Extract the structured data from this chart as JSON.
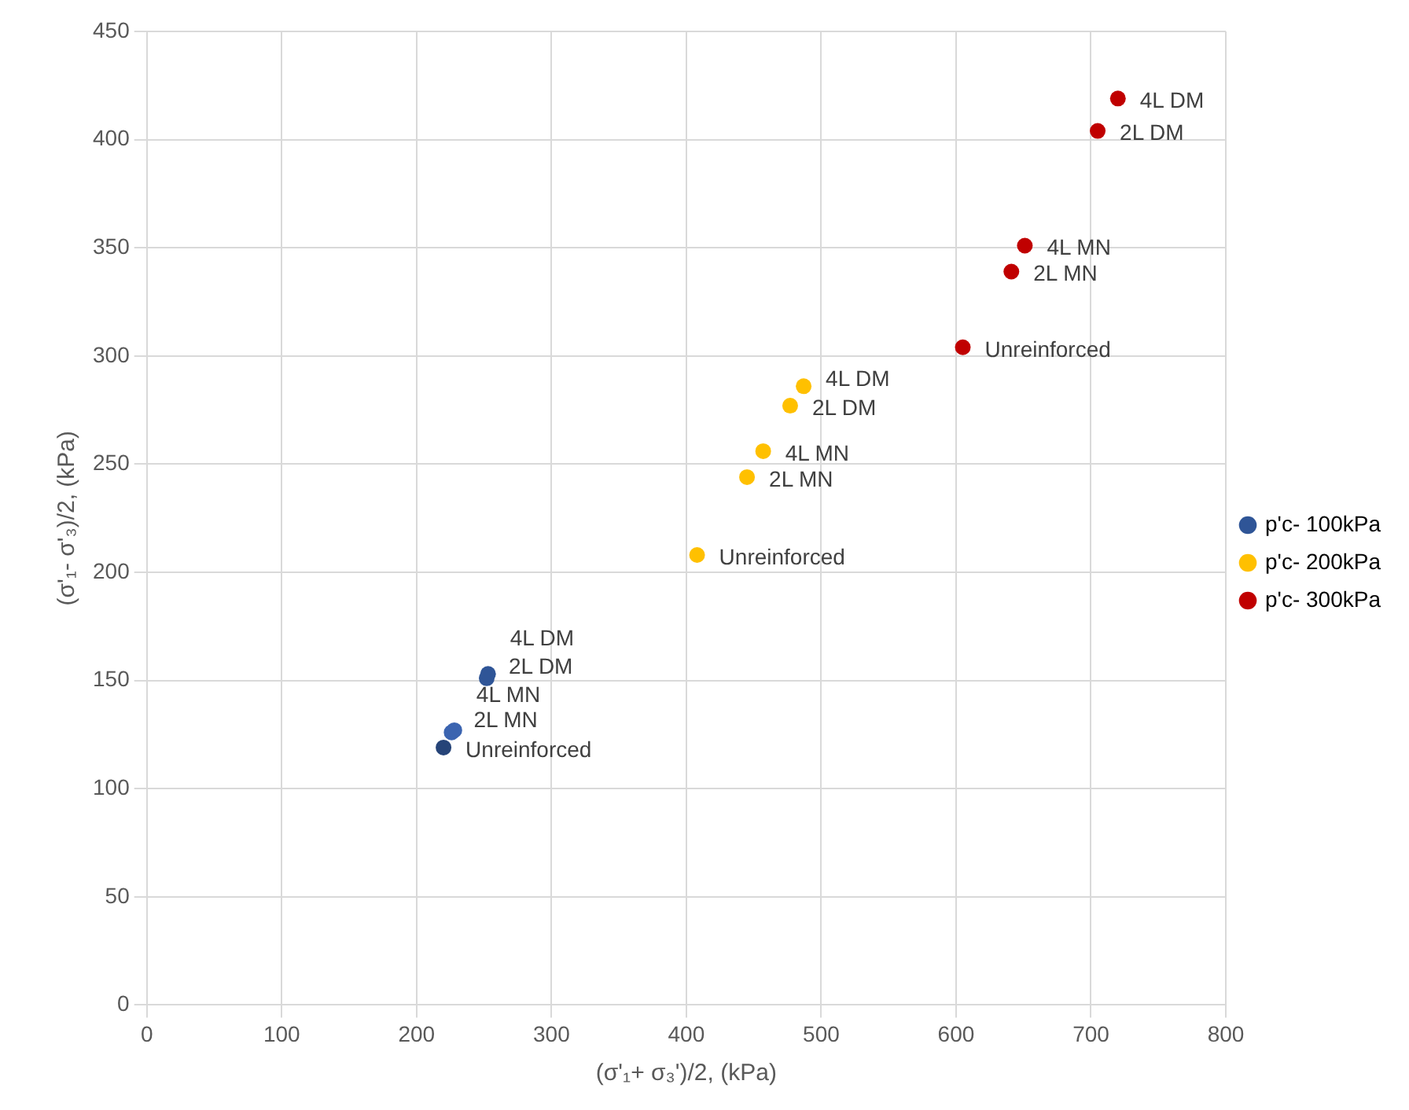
{
  "chart_data": {
    "type": "scatter",
    "xlabel": "(σ'₁+ σ₃')/2, (kPa)",
    "ylabel": "(σ'₁- σ'₃)/2, (kPa)",
    "xlim": [
      0,
      800
    ],
    "xticks": [
      0,
      100,
      200,
      300,
      400,
      500,
      600,
      700,
      800
    ],
    "ylim": [
      0,
      450
    ],
    "yticks": [
      0,
      50,
      100,
      150,
      200,
      250,
      300,
      350,
      400,
      450
    ],
    "grid": true,
    "legend": "right",
    "marker": "circle",
    "series": [
      {
        "name": "p'c- 100kPa",
        "color": "#2f5597",
        "colors": [
          "#264478",
          "#3b64b0",
          "#3b64b0",
          "#2f5597",
          "#2f5597"
        ],
        "x": [
          220,
          226,
          228,
          252,
          253
        ],
        "values": [
          119,
          126,
          127,
          151,
          153
        ]
      },
      {
        "name": "p'c- 200kPa",
        "color": "#ffc000",
        "x": [
          408,
          445,
          457,
          477,
          487
        ],
        "values": [
          208,
          244,
          256,
          277,
          286
        ]
      },
      {
        "name": "p'c- 300kPa",
        "color": "#c00000",
        "x": [
          605,
          641,
          651,
          705,
          720
        ],
        "values": [
          304,
          339,
          351,
          404,
          419
        ]
      }
    ],
    "annotations": [
      {
        "text": "Unreinforced",
        "x": 220,
        "y": 119
      },
      {
        "text": "2L MN",
        "x": 226,
        "y": 126
      },
      {
        "text": "4L MN",
        "x": 228,
        "y": 127
      },
      {
        "text": "2L DM",
        "x": 252,
        "y": 151
      },
      {
        "text": "4L DM",
        "x": 253,
        "y": 153
      },
      {
        "text": "Unreinforced",
        "x": 408,
        "y": 208
      },
      {
        "text": "2L MN",
        "x": 445,
        "y": 244
      },
      {
        "text": "4L MN",
        "x": 457,
        "y": 256
      },
      {
        "text": "2L DM",
        "x": 477,
        "y": 277
      },
      {
        "text": "4L DM",
        "x": 487,
        "y": 286
      },
      {
        "text": "Unreinforced",
        "x": 605,
        "y": 304
      },
      {
        "text": "2L MN",
        "x": 641,
        "y": 339
      },
      {
        "text": "4L MN",
        "x": 651,
        "y": 351
      },
      {
        "text": "2L DM",
        "x": 705,
        "y": 404
      },
      {
        "text": "4L DM",
        "x": 720,
        "y": 419
      }
    ]
  }
}
